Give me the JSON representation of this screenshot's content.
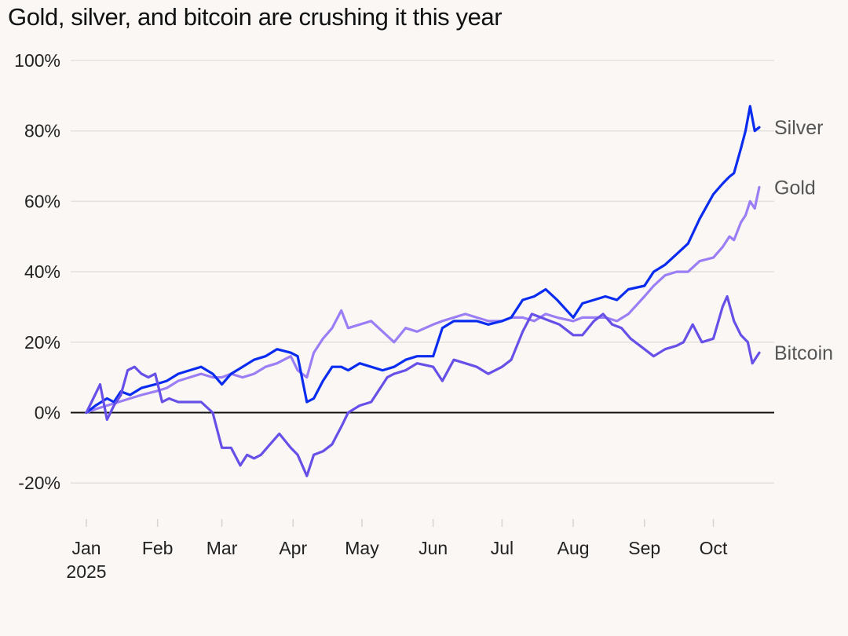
{
  "chart_data": {
    "type": "line",
    "title": "Gold, silver, and bitcoin are crushing it this year",
    "xlabel": "",
    "ylabel": "",
    "x_range": [
      "2025-01-01",
      "2025-10-21"
    ],
    "ylim": [
      -30,
      100
    ],
    "y_ticks": [
      -20,
      0,
      20,
      40,
      60,
      80,
      100
    ],
    "y_tick_labels": [
      "-20%",
      "0%",
      "20%",
      "40%",
      "60%",
      "80%",
      "100%"
    ],
    "x_ticks": [
      {
        "date": "2025-01-01",
        "label": "Jan",
        "sublabel": "2025"
      },
      {
        "date": "2025-02-01",
        "label": "Feb"
      },
      {
        "date": "2025-03-01",
        "label": "Mar"
      },
      {
        "date": "2025-04-01",
        "label": "Apr"
      },
      {
        "date": "2025-05-01",
        "label": "May"
      },
      {
        "date": "2025-06-01",
        "label": "Jun"
      },
      {
        "date": "2025-07-01",
        "label": "Jul"
      },
      {
        "date": "2025-08-01",
        "label": "Aug"
      },
      {
        "date": "2025-09-01",
        "label": "Sep"
      },
      {
        "date": "2025-10-01",
        "label": "Oct"
      }
    ],
    "grid": true,
    "legend": "direct-labels-right",
    "series": [
      {
        "name": "Gold",
        "color": "#9b7ef5",
        "points": [
          [
            "2025-01-01",
            0
          ],
          [
            "2025-01-05",
            1
          ],
          [
            "2025-01-10",
            2
          ],
          [
            "2025-01-15",
            3
          ],
          [
            "2025-01-20",
            4
          ],
          [
            "2025-01-25",
            5
          ],
          [
            "2025-01-31",
            6
          ],
          [
            "2025-02-05",
            7
          ],
          [
            "2025-02-10",
            9
          ],
          [
            "2025-02-15",
            10
          ],
          [
            "2025-02-20",
            11
          ],
          [
            "2025-02-25",
            10
          ],
          [
            "2025-03-01",
            10
          ],
          [
            "2025-03-05",
            11
          ],
          [
            "2025-03-10",
            10
          ],
          [
            "2025-03-15",
            11
          ],
          [
            "2025-03-20",
            13
          ],
          [
            "2025-03-25",
            14
          ],
          [
            "2025-03-31",
            16
          ],
          [
            "2025-04-03",
            12
          ],
          [
            "2025-04-07",
            10
          ],
          [
            "2025-04-10",
            17
          ],
          [
            "2025-04-14",
            21
          ],
          [
            "2025-04-18",
            24
          ],
          [
            "2025-04-22",
            29
          ],
          [
            "2025-04-25",
            24
          ],
          [
            "2025-04-30",
            25
          ],
          [
            "2025-05-05",
            26
          ],
          [
            "2025-05-10",
            23
          ],
          [
            "2025-05-15",
            20
          ],
          [
            "2025-05-20",
            24
          ],
          [
            "2025-05-25",
            23
          ],
          [
            "2025-06-01",
            25
          ],
          [
            "2025-06-05",
            26
          ],
          [
            "2025-06-10",
            27
          ],
          [
            "2025-06-15",
            28
          ],
          [
            "2025-06-20",
            27
          ],
          [
            "2025-06-25",
            26
          ],
          [
            "2025-07-01",
            26
          ],
          [
            "2025-07-05",
            27
          ],
          [
            "2025-07-10",
            27
          ],
          [
            "2025-07-15",
            26
          ],
          [
            "2025-07-20",
            28
          ],
          [
            "2025-07-25",
            27
          ],
          [
            "2025-08-01",
            26
          ],
          [
            "2025-08-05",
            27
          ],
          [
            "2025-08-10",
            27
          ],
          [
            "2025-08-15",
            27
          ],
          [
            "2025-08-20",
            26
          ],
          [
            "2025-08-25",
            28
          ],
          [
            "2025-09-01",
            33
          ],
          [
            "2025-09-05",
            36
          ],
          [
            "2025-09-10",
            39
          ],
          [
            "2025-09-15",
            40
          ],
          [
            "2025-09-20",
            40
          ],
          [
            "2025-09-25",
            43
          ],
          [
            "2025-10-01",
            44
          ],
          [
            "2025-10-05",
            47
          ],
          [
            "2025-10-08",
            50
          ],
          [
            "2025-10-10",
            49
          ],
          [
            "2025-10-13",
            54
          ],
          [
            "2025-10-15",
            56
          ],
          [
            "2025-10-17",
            60
          ],
          [
            "2025-10-19",
            58
          ],
          [
            "2025-10-21",
            64
          ]
        ]
      },
      {
        "name": "Silver",
        "color": "#0a2cf0",
        "points": [
          [
            "2025-01-01",
            0
          ],
          [
            "2025-01-05",
            2
          ],
          [
            "2025-01-10",
            4
          ],
          [
            "2025-01-13",
            3
          ],
          [
            "2025-01-16",
            6
          ],
          [
            "2025-01-20",
            5
          ],
          [
            "2025-01-25",
            7
          ],
          [
            "2025-01-31",
            8
          ],
          [
            "2025-02-05",
            9
          ],
          [
            "2025-02-10",
            11
          ],
          [
            "2025-02-15",
            12
          ],
          [
            "2025-02-20",
            13
          ],
          [
            "2025-02-25",
            11
          ],
          [
            "2025-03-01",
            8
          ],
          [
            "2025-03-05",
            11
          ],
          [
            "2025-03-10",
            13
          ],
          [
            "2025-03-15",
            15
          ],
          [
            "2025-03-20",
            16
          ],
          [
            "2025-03-25",
            18
          ],
          [
            "2025-03-31",
            17
          ],
          [
            "2025-04-03",
            16
          ],
          [
            "2025-04-07",
            3
          ],
          [
            "2025-04-10",
            4
          ],
          [
            "2025-04-14",
            9
          ],
          [
            "2025-04-18",
            13
          ],
          [
            "2025-04-22",
            13
          ],
          [
            "2025-04-25",
            12
          ],
          [
            "2025-04-30",
            14
          ],
          [
            "2025-05-05",
            13
          ],
          [
            "2025-05-10",
            12
          ],
          [
            "2025-05-15",
            13
          ],
          [
            "2025-05-20",
            15
          ],
          [
            "2025-05-25",
            16
          ],
          [
            "2025-06-01",
            16
          ],
          [
            "2025-06-05",
            24
          ],
          [
            "2025-06-10",
            26
          ],
          [
            "2025-06-15",
            26
          ],
          [
            "2025-06-20",
            26
          ],
          [
            "2025-06-25",
            25
          ],
          [
            "2025-07-01",
            26
          ],
          [
            "2025-07-05",
            27
          ],
          [
            "2025-07-10",
            32
          ],
          [
            "2025-07-15",
            33
          ],
          [
            "2025-07-20",
            35
          ],
          [
            "2025-07-25",
            32
          ],
          [
            "2025-08-01",
            27
          ],
          [
            "2025-08-05",
            31
          ],
          [
            "2025-08-10",
            32
          ],
          [
            "2025-08-15",
            33
          ],
          [
            "2025-08-20",
            32
          ],
          [
            "2025-08-25",
            35
          ],
          [
            "2025-09-01",
            36
          ],
          [
            "2025-09-05",
            40
          ],
          [
            "2025-09-10",
            42
          ],
          [
            "2025-09-15",
            45
          ],
          [
            "2025-09-20",
            48
          ],
          [
            "2025-09-25",
            55
          ],
          [
            "2025-10-01",
            62
          ],
          [
            "2025-10-05",
            65
          ],
          [
            "2025-10-08",
            67
          ],
          [
            "2025-10-10",
            68
          ],
          [
            "2025-10-13",
            75
          ],
          [
            "2025-10-15",
            80
          ],
          [
            "2025-10-17",
            87
          ],
          [
            "2025-10-19",
            80
          ],
          [
            "2025-10-21",
            81
          ]
        ]
      },
      {
        "name": "Bitcoin",
        "color": "#6650e8",
        "points": [
          [
            "2025-01-01",
            0
          ],
          [
            "2025-01-04",
            4
          ],
          [
            "2025-01-07",
            8
          ],
          [
            "2025-01-10",
            -2
          ],
          [
            "2025-01-13",
            2
          ],
          [
            "2025-01-16",
            5
          ],
          [
            "2025-01-19",
            12
          ],
          [
            "2025-01-22",
            13
          ],
          [
            "2025-01-25",
            11
          ],
          [
            "2025-01-28",
            10
          ],
          [
            "2025-01-31",
            11
          ],
          [
            "2025-02-03",
            3
          ],
          [
            "2025-02-06",
            4
          ],
          [
            "2025-02-10",
            3
          ],
          [
            "2025-02-15",
            3
          ],
          [
            "2025-02-20",
            3
          ],
          [
            "2025-02-25",
            0
          ],
          [
            "2025-03-01",
            -10
          ],
          [
            "2025-03-05",
            -10
          ],
          [
            "2025-03-09",
            -15
          ],
          [
            "2025-03-12",
            -12
          ],
          [
            "2025-03-15",
            -13
          ],
          [
            "2025-03-18",
            -12
          ],
          [
            "2025-03-22",
            -9
          ],
          [
            "2025-03-26",
            -6
          ],
          [
            "2025-03-31",
            -10
          ],
          [
            "2025-04-03",
            -12
          ],
          [
            "2025-04-07",
            -18
          ],
          [
            "2025-04-10",
            -12
          ],
          [
            "2025-04-14",
            -11
          ],
          [
            "2025-04-18",
            -9
          ],
          [
            "2025-04-22",
            -4
          ],
          [
            "2025-04-25",
            0
          ],
          [
            "2025-04-30",
            2
          ],
          [
            "2025-05-05",
            3
          ],
          [
            "2025-05-09",
            7
          ],
          [
            "2025-05-12",
            10
          ],
          [
            "2025-05-15",
            11
          ],
          [
            "2025-05-20",
            12
          ],
          [
            "2025-05-25",
            14
          ],
          [
            "2025-06-01",
            13
          ],
          [
            "2025-06-05",
            9
          ],
          [
            "2025-06-10",
            15
          ],
          [
            "2025-06-15",
            14
          ],
          [
            "2025-06-20",
            13
          ],
          [
            "2025-06-25",
            11
          ],
          [
            "2025-07-01",
            13
          ],
          [
            "2025-07-05",
            15
          ],
          [
            "2025-07-10",
            23
          ],
          [
            "2025-07-14",
            28
          ],
          [
            "2025-07-18",
            27
          ],
          [
            "2025-07-22",
            26
          ],
          [
            "2025-07-26",
            25
          ],
          [
            "2025-08-01",
            22
          ],
          [
            "2025-08-05",
            22
          ],
          [
            "2025-08-10",
            26
          ],
          [
            "2025-08-14",
            28
          ],
          [
            "2025-08-18",
            25
          ],
          [
            "2025-08-22",
            24
          ],
          [
            "2025-08-26",
            21
          ],
          [
            "2025-09-01",
            18
          ],
          [
            "2025-09-05",
            16
          ],
          [
            "2025-09-10",
            18
          ],
          [
            "2025-09-15",
            19
          ],
          [
            "2025-09-18",
            20
          ],
          [
            "2025-09-22",
            25
          ],
          [
            "2025-09-26",
            20
          ],
          [
            "2025-10-01",
            21
          ],
          [
            "2025-10-05",
            30
          ],
          [
            "2025-10-07",
            33
          ],
          [
            "2025-10-10",
            26
          ],
          [
            "2025-10-13",
            22
          ],
          [
            "2025-10-16",
            20
          ],
          [
            "2025-10-18",
            14
          ],
          [
            "2025-10-21",
            17
          ]
        ]
      }
    ],
    "label_order": [
      "Silver",
      "Gold",
      "Bitcoin"
    ]
  }
}
